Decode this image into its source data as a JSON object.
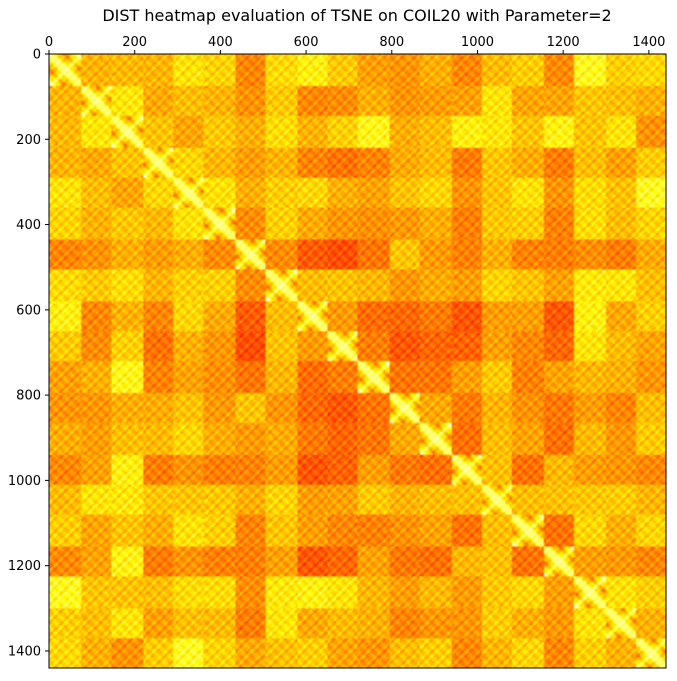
{
  "chart_data": {
    "type": "heatmap",
    "title": "DIST heatmap evaluation of TSNE on COIL20 with Parameter=2",
    "xlabel": "",
    "ylabel": "",
    "x_ticks": [
      0,
      200,
      400,
      600,
      800,
      1000,
      1200,
      1400
    ],
    "y_ticks": [
      0,
      200,
      400,
      600,
      800,
      1000,
      1200,
      1400
    ],
    "x_tick_labels": [
      "0",
      "200",
      "400",
      "600",
      "800",
      "1000",
      "1200",
      "1400"
    ],
    "y_tick_labels": [
      "0",
      "200",
      "400",
      "600",
      "800",
      "1000",
      "1200",
      "1400"
    ],
    "xlim": [
      0,
      1440
    ],
    "ylim": [
      1440,
      0
    ],
    "x_axis_position": "top",
    "grid": false,
    "legend": "none",
    "colormap": "hot_r",
    "colors": {
      "low": "#ffffff",
      "mid": "#ffff40",
      "high": "#ff2000"
    },
    "grid_size": 1440,
    "block_size": 72,
    "block_count": 20,
    "description_values": "pairwise distance matrix between 1440 COIL20 samples (20 objects x 72 views); low distances within objects along the diagonal"
  }
}
